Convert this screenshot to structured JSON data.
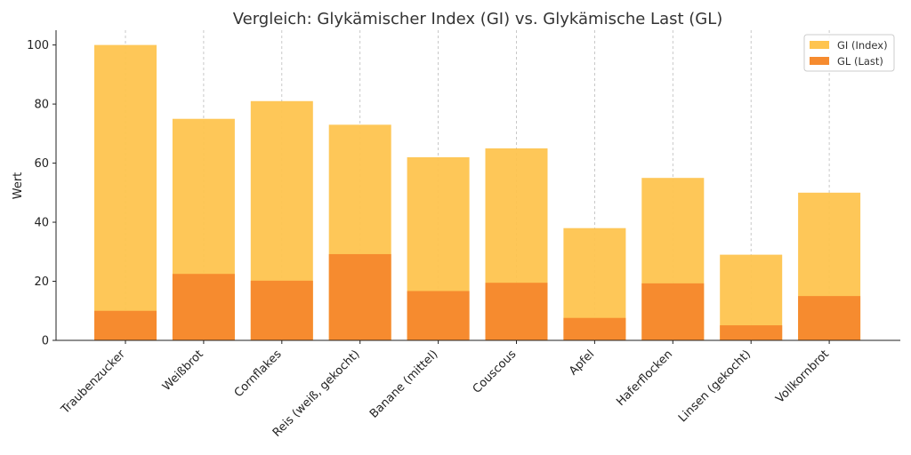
{
  "chart_data": {
    "type": "bar",
    "title": "Vergleich: Glykämischer Index (GI) vs. Glykämische Last (GL)",
    "xlabel": "",
    "ylabel": "Wert",
    "ylim": [
      0,
      105
    ],
    "yticks": [
      0,
      20,
      40,
      60,
      80,
      100
    ],
    "grid": "vertical dashed",
    "legend_position": "top-right",
    "categories": [
      "Traubenzucker",
      "Weißbrot",
      "Cornflakes",
      "Reis (weiß, gekocht)",
      "Banane (mittel)",
      "Couscous",
      "Apfel",
      "Haferflocken",
      "Linsen (gekocht)",
      "Vollkornbrot"
    ],
    "series": [
      {
        "name": "GI (Index)",
        "color": "#fec44f",
        "values": [
          100,
          75,
          81,
          73,
          62,
          65,
          38,
          55,
          29,
          50
        ]
      },
      {
        "name": "GL (Last)",
        "color": "#f68b2f",
        "values": [
          10,
          22.5,
          20.2,
          29.2,
          16.7,
          19.5,
          7.6,
          19.3,
          5.1,
          15
        ]
      }
    ]
  }
}
